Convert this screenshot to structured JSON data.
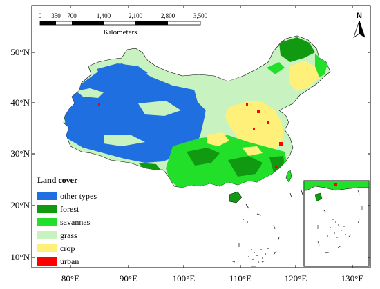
{
  "map": {
    "lat_ticks": [
      "50°N",
      "40°N",
      "30°N",
      "20°N",
      "10°N"
    ],
    "lon_ticks": [
      "80°E",
      "90°E",
      "100°E",
      "110°E",
      "120°E",
      "130°E"
    ],
    "scale_bar": {
      "labels": [
        "0",
        "350",
        "700",
        "1,400",
        "2,100",
        "2,800",
        "3,500"
      ],
      "unit": "Kilometers"
    },
    "north_arrow": {
      "label": "N"
    },
    "legend": {
      "title": "Land cover",
      "items": [
        {
          "label": "other types",
          "color": "#1f6fe0"
        },
        {
          "label": "forest",
          "color": "#119a11"
        },
        {
          "label": "savannas",
          "color": "#22e02a"
        },
        {
          "label": "grass",
          "color": "#c8f3c1"
        },
        {
          "label": "crop",
          "color": "#fff07a"
        },
        {
          "label": "urban",
          "color": "#ff0000"
        }
      ]
    },
    "colors": {
      "other_types": "#1f6fe0",
      "forest": "#119a11",
      "savannas": "#22e02a",
      "grass": "#c8f3c1",
      "crop": "#fff07a",
      "urban": "#ff0000"
    }
  }
}
